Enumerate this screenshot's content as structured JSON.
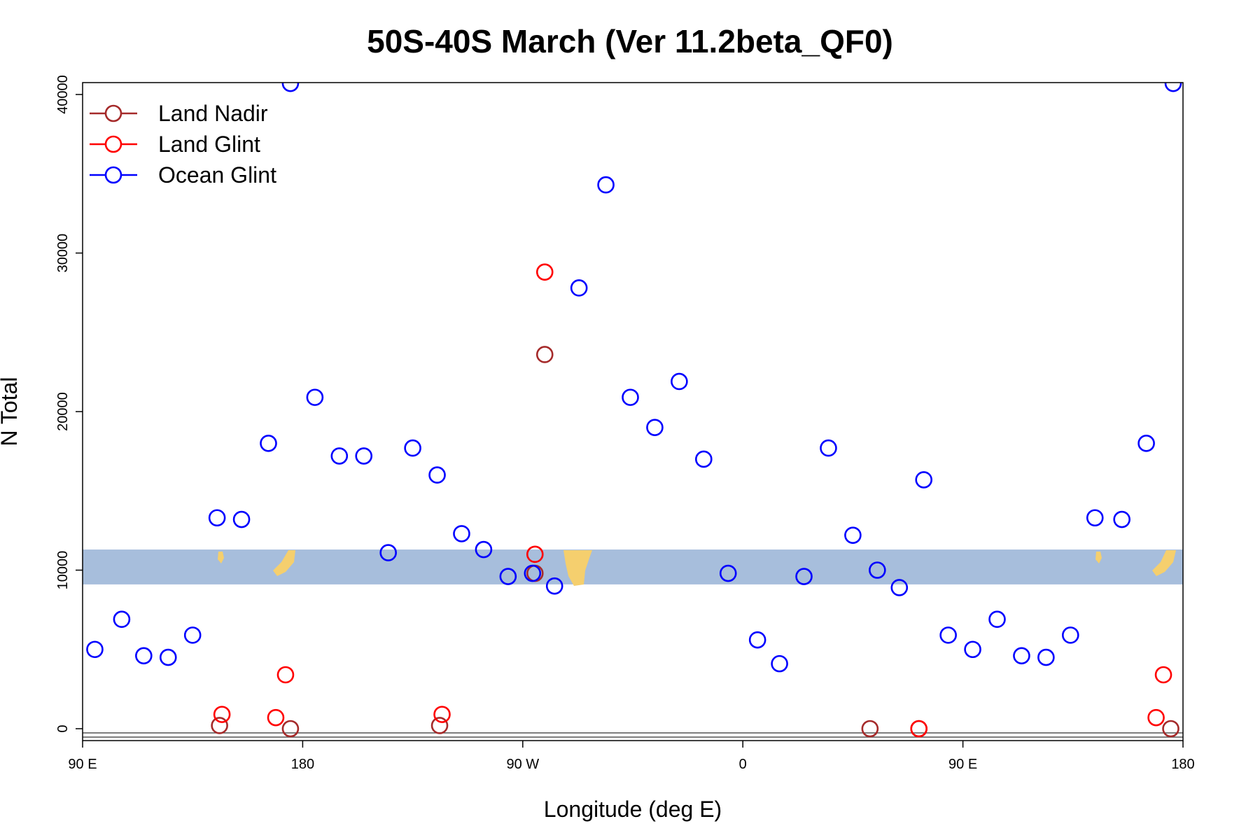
{
  "chart_data": {
    "type": "scatter",
    "title": "50S-40S March (Ver 11.2beta_QF0)",
    "xlabel": "Longitude (deg E)",
    "ylabel": "N Total",
    "xlim": [
      90,
      540
    ],
    "ylim": [
      0,
      40000
    ],
    "x_ticks": [
      {
        "value": 90,
        "label": "90 E"
      },
      {
        "value": 180,
        "label": "180"
      },
      {
        "value": 270,
        "label": "90 W"
      },
      {
        "value": 360,
        "label": "0"
      },
      {
        "value": 450,
        "label": "90 E"
      },
      {
        "value": 540,
        "label": "180"
      }
    ],
    "y_ticks": [
      {
        "value": 0,
        "label": "0"
      },
      {
        "value": 10000,
        "label": "10000"
      },
      {
        "value": 20000,
        "label": "20000"
      },
      {
        "value": 30000,
        "label": "30000"
      },
      {
        "value": 40000,
        "label": "40000"
      }
    ],
    "grid": false,
    "legend_position": "top-left",
    "background_band": {
      "y_range": [
        9100,
        11300
      ],
      "color": "#a7bedc",
      "land_color": "#f5cf6e"
    },
    "series": [
      {
        "name": "Land Nadir",
        "color": "#a52a2a",
        "points": [
          {
            "x": 146,
            "y": 200
          },
          {
            "x": 175,
            "y": 0
          },
          {
            "x": 275,
            "y": 9800
          },
          {
            "x": 279,
            "y": 23600
          },
          {
            "x": 412,
            "y": 0
          },
          {
            "x": 432,
            "y": 0
          },
          {
            "x": 236,
            "y": 200
          },
          {
            "x": 535,
            "y": 0
          }
        ]
      },
      {
        "name": "Land Glint",
        "color": "#ff0000",
        "points": [
          {
            "x": 147,
            "y": 900
          },
          {
            "x": 169,
            "y": 700
          },
          {
            "x": 173,
            "y": 3400
          },
          {
            "x": 275,
            "y": 11000
          },
          {
            "x": 279,
            "y": 28800
          },
          {
            "x": 432,
            "y": 0
          },
          {
            "x": 237,
            "y": 900
          },
          {
            "x": 529,
            "y": 700
          },
          {
            "x": 532,
            "y": 3400
          }
        ]
      },
      {
        "name": "Ocean Glint",
        "color": "#0000ff",
        "points": [
          {
            "x": 95,
            "y": 5000
          },
          {
            "x": 106,
            "y": 6900
          },
          {
            "x": 115,
            "y": 4600
          },
          {
            "x": 125,
            "y": 4500
          },
          {
            "x": 135,
            "y": 5900
          },
          {
            "x": 145,
            "y": 13300
          },
          {
            "x": 155,
            "y": 13200
          },
          {
            "x": 166,
            "y": 18000
          },
          {
            "x": 175,
            "y": 40700
          },
          {
            "x": 185,
            "y": 20900
          },
          {
            "x": 195,
            "y": 17200
          },
          {
            "x": 205,
            "y": 17200
          },
          {
            "x": 215,
            "y": 11100
          },
          {
            "x": 225,
            "y": 17700
          },
          {
            "x": 235,
            "y": 16000
          },
          {
            "x": 245,
            "y": 12300
          },
          {
            "x": 254,
            "y": 11300
          },
          {
            "x": 264,
            "y": 9600
          },
          {
            "x": 274,
            "y": 9800
          },
          {
            "x": 283,
            "y": 9000
          },
          {
            "x": 293,
            "y": 27800
          },
          {
            "x": 304,
            "y": 34300
          },
          {
            "x": 314,
            "y": 20900
          },
          {
            "x": 324,
            "y": 19000
          },
          {
            "x": 334,
            "y": 21900
          },
          {
            "x": 344,
            "y": 17000
          },
          {
            "x": 354,
            "y": 9800
          },
          {
            "x": 366,
            "y": 5600
          },
          {
            "x": 375,
            "y": 4100
          },
          {
            "x": 385,
            "y": 9600
          },
          {
            "x": 395,
            "y": 17700
          },
          {
            "x": 405,
            "y": 12200
          },
          {
            "x": 415,
            "y": 10000
          },
          {
            "x": 424,
            "y": 8900
          },
          {
            "x": 434,
            "y": 15700
          },
          {
            "x": 444,
            "y": 5900
          },
          {
            "x": 454,
            "y": 5000
          },
          {
            "x": 464,
            "y": 6900
          },
          {
            "x": 474,
            "y": 4600
          },
          {
            "x": 484,
            "y": 4500
          },
          {
            "x": 494,
            "y": 5900
          },
          {
            "x": 504,
            "y": 13300
          },
          {
            "x": 515,
            "y": 13200
          },
          {
            "x": 525,
            "y": 18000
          },
          {
            "x": 536,
            "y": 40700
          }
        ]
      }
    ]
  }
}
